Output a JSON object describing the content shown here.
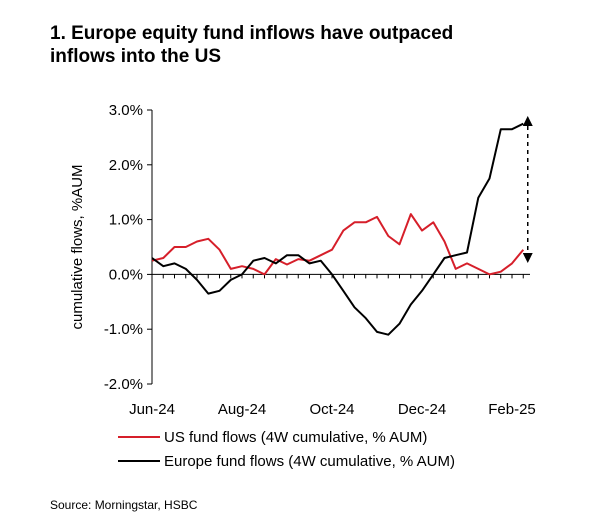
{
  "title_lines": [
    "1. Europe equity fund inflows have outpaced",
    "inflows into the US"
  ],
  "source": "Source:  Morningstar, HSBC",
  "chart_data": {
    "type": "line",
    "ylabel": "cumulative flows, %AUM",
    "y_ticks": [
      3.0,
      2.0,
      1.0,
      0.0,
      -1.0,
      -2.0
    ],
    "y_tick_labels": [
      "3.0%",
      "2.0%",
      "1.0%",
      "0.0%",
      "-1.0%",
      "-2.0%"
    ],
    "ylim": [
      -2.0,
      3.0
    ],
    "x_tick_labels": [
      "Jun-24",
      "Aug-24",
      "Oct-24",
      "Dec-24",
      "Feb-25"
    ],
    "x_tick_positions": [
      0,
      8,
      16,
      24,
      32
    ],
    "xlim": [
      0,
      33.6
    ],
    "grid": false,
    "legend": "bottom",
    "series": [
      {
        "name": "US fund flows (4W cumulative, % AUM)",
        "color": "#d61f2a",
        "x": [
          0,
          1,
          2,
          3,
          4,
          5,
          6,
          7,
          8,
          9,
          10,
          11,
          12,
          13,
          14,
          15,
          16,
          17,
          18,
          19,
          20,
          21,
          22,
          23,
          24,
          25,
          26,
          27,
          28,
          29,
          30,
          31,
          32,
          33
        ],
        "y": [
          0.25,
          0.3,
          0.5,
          0.5,
          0.6,
          0.65,
          0.45,
          0.1,
          0.15,
          0.1,
          0.0,
          0.28,
          0.18,
          0.28,
          0.25,
          0.35,
          0.45,
          0.8,
          0.95,
          0.95,
          1.05,
          0.7,
          0.55,
          1.1,
          0.8,
          0.95,
          0.6,
          0.1,
          0.2,
          0.1,
          0.0,
          0.05,
          0.2,
          0.45
        ]
      },
      {
        "name": "Europe fund flows (4W cumulative, % AUM)",
        "color": "#000000",
        "x": [
          0,
          1,
          2,
          3,
          4,
          5,
          6,
          7,
          8,
          9,
          10,
          11,
          12,
          13,
          14,
          15,
          16,
          17,
          18,
          19,
          20,
          21,
          22,
          23,
          24,
          25,
          26,
          27,
          28,
          29,
          30,
          31,
          32,
          33
        ],
        "y": [
          0.3,
          0.15,
          0.2,
          0.1,
          -0.1,
          -0.35,
          -0.3,
          -0.1,
          0.0,
          0.25,
          0.3,
          0.2,
          0.35,
          0.35,
          0.2,
          0.25,
          0.0,
          -0.3,
          -0.6,
          -0.8,
          -1.05,
          -1.1,
          -0.9,
          -0.55,
          -0.3,
          0.0,
          0.3,
          0.35,
          0.4,
          1.4,
          1.75,
          2.65,
          2.65,
          2.75
        ]
      }
    ],
    "annotation": {
      "type": "double-arrow",
      "style": "dashed",
      "x": 33.4,
      "y_from": 0.3,
      "y_to": 2.8
    }
  }
}
